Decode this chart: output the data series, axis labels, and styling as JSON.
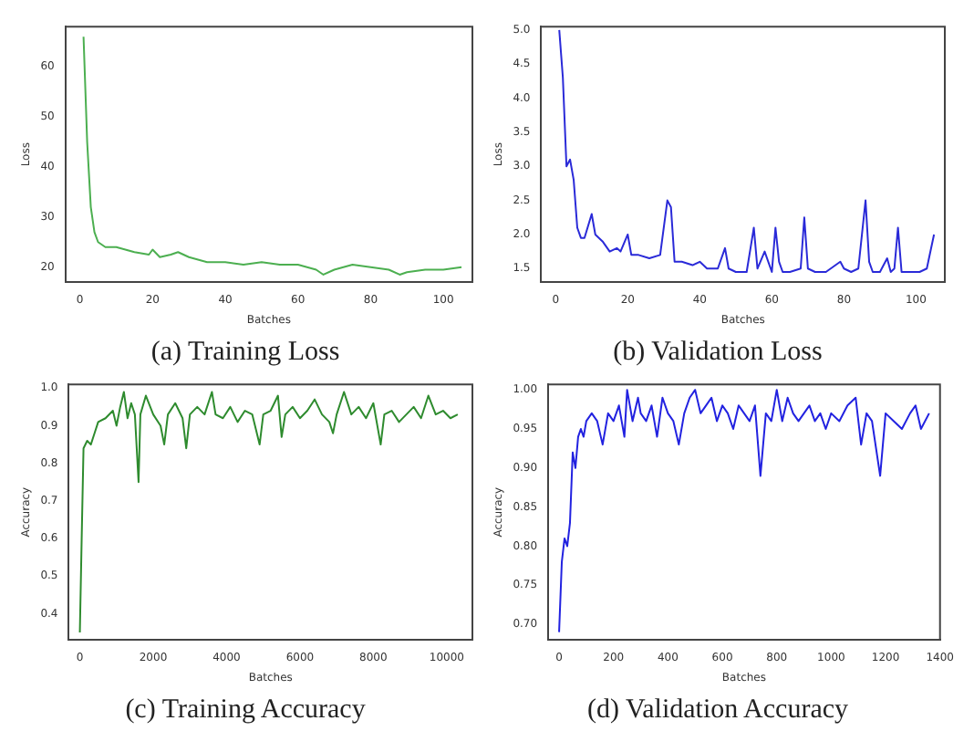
{
  "chart_data": [
    {
      "type": "line",
      "title": "(a) Training Loss",
      "xlabel": "Batches",
      "ylabel": "Loss",
      "xlim": [
        -4,
        108
      ],
      "ylim": [
        17,
        68
      ],
      "xticks": [
        0,
        20,
        40,
        60,
        80,
        100
      ],
      "yticks": [
        20,
        30,
        40,
        50,
        60
      ],
      "x": [
        1,
        2,
        3,
        4,
        5,
        7,
        10,
        15,
        19,
        20,
        22,
        25,
        27,
        30,
        35,
        40,
        45,
        50,
        55,
        60,
        65,
        67,
        70,
        75,
        80,
        85,
        88,
        90,
        95,
        100,
        105
      ],
      "series": [
        {
          "color": "#4caf50",
          "values": [
            66,
            45,
            32,
            27,
            25,
            24,
            24,
            23,
            22.5,
            23.5,
            22,
            22.5,
            23,
            22,
            21,
            21,
            20.5,
            21,
            20.5,
            20.5,
            19.5,
            18.5,
            19.5,
            20.5,
            20,
            19.5,
            18.5,
            19,
            19.5,
            19.5,
            20
          ]
        }
      ]
    },
    {
      "type": "line",
      "title": "(b) Validation Loss",
      "xlabel": "Batches",
      "ylabel": "Loss",
      "xlim": [
        -4,
        108
      ],
      "ylim": [
        1.3,
        5.05
      ],
      "xticks": [
        0,
        20,
        40,
        60,
        80,
        100
      ],
      "yticks": [
        1.5,
        {
          "value": 2,
          "label": "2.0"
        },
        2.5,
        {
          "value": 3,
          "label": "3.0"
        },
        3.5,
        {
          "value": 4,
          "label": "4.0"
        },
        4.5,
        {
          "value": 5,
          "label": "5.0"
        }
      ],
      "x": [
        1,
        2,
        3,
        4,
        5,
        6,
        7,
        8,
        10,
        11,
        13,
        15,
        17,
        18,
        20,
        21,
        23,
        26,
        29,
        31,
        32,
        33,
        35,
        38,
        40,
        42,
        45,
        47,
        48,
        50,
        53,
        55,
        56,
        58,
        60,
        61,
        62,
        63,
        65,
        68,
        69,
        70,
        72,
        75,
        79,
        80,
        82,
        84,
        86,
        87,
        88,
        90,
        92,
        93,
        94,
        95,
        96,
        98,
        101,
        103,
        105
      ],
      "series": [
        {
          "color": "#2a2ad8",
          "values": [
            5.0,
            4.3,
            3.0,
            3.1,
            2.8,
            2.1,
            1.95,
            1.95,
            2.3,
            2.0,
            1.9,
            1.75,
            1.8,
            1.75,
            2.0,
            1.7,
            1.7,
            1.65,
            1.7,
            2.5,
            2.4,
            1.6,
            1.6,
            1.55,
            1.6,
            1.5,
            1.5,
            1.8,
            1.5,
            1.45,
            1.45,
            2.1,
            1.5,
            1.75,
            1.45,
            2.1,
            1.6,
            1.45,
            1.45,
            1.5,
            2.25,
            1.5,
            1.45,
            1.45,
            1.6,
            1.5,
            1.45,
            1.5,
            2.5,
            1.6,
            1.45,
            1.45,
            1.65,
            1.45,
            1.5,
            2.1,
            1.45,
            1.45,
            1.45,
            1.5,
            2.0
          ]
        }
      ]
    },
    {
      "type": "line",
      "title": "(c) Training Accuracy",
      "xlabel": "Batches",
      "ylabel": "Accuracy",
      "xlim": [
        -300,
        10700
      ],
      "ylim": [
        0.33,
        1.01
      ],
      "xticks": [
        0,
        2000,
        4000,
        6000,
        8000,
        10000
      ],
      "yticks": [
        0.4,
        0.5,
        0.6,
        0.7,
        0.8,
        0.9,
        {
          "value": 1,
          "label": "1.0"
        }
      ],
      "x": [
        0,
        50,
        100,
        200,
        300,
        400,
        500,
        700,
        900,
        1000,
        1100,
        1200,
        1300,
        1400,
        1500,
        1600,
        1650,
        1800,
        2000,
        2200,
        2300,
        2400,
        2600,
        2800,
        2900,
        3000,
        3200,
        3400,
        3600,
        3700,
        3900,
        4100,
        4300,
        4500,
        4700,
        4900,
        5000,
        5200,
        5400,
        5500,
        5600,
        5800,
        6000,
        6200,
        6400,
        6600,
        6800,
        6900,
        7000,
        7200,
        7400,
        7600,
        7800,
        8000,
        8200,
        8300,
        8500,
        8700,
        8900,
        9100,
        9300,
        9500,
        9700,
        9900,
        10100,
        10300
      ],
      "series": [
        {
          "color": "#2e8b2e",
          "values": [
            0.35,
            0.6,
            0.84,
            0.86,
            0.85,
            0.88,
            0.91,
            0.92,
            0.94,
            0.9,
            0.95,
            0.99,
            0.92,
            0.96,
            0.93,
            0.75,
            0.93,
            0.98,
            0.93,
            0.9,
            0.85,
            0.93,
            0.96,
            0.92,
            0.84,
            0.93,
            0.95,
            0.93,
            0.99,
            0.93,
            0.92,
            0.95,
            0.91,
            0.94,
            0.93,
            0.85,
            0.93,
            0.94,
            0.98,
            0.87,
            0.93,
            0.95,
            0.92,
            0.94,
            0.97,
            0.93,
            0.91,
            0.88,
            0.93,
            0.99,
            0.93,
            0.95,
            0.92,
            0.96,
            0.85,
            0.93,
            0.94,
            0.91,
            0.93,
            0.95,
            0.92,
            0.98,
            0.93,
            0.94,
            0.92,
            0.93
          ]
        }
      ]
    },
    {
      "type": "line",
      "title": "(d) Validation Accuracy",
      "xlabel": "Batches",
      "ylabel": "Accuracy",
      "xlim": [
        -40,
        1400
      ],
      "ylim": [
        0.68,
        1.007
      ],
      "xticks": [
        0,
        200,
        400,
        600,
        800,
        1000,
        1200,
        1400
      ],
      "yticks": [
        {
          "value": 0.7,
          "label": "0.70"
        },
        0.75,
        {
          "value": 0.8,
          "label": "0.80"
        },
        0.85,
        {
          "value": 0.9,
          "label": "0.90"
        },
        0.95,
        {
          "value": 1,
          "label": "1.00"
        }
      ],
      "x": [
        0,
        10,
        20,
        30,
        40,
        50,
        60,
        70,
        80,
        90,
        100,
        120,
        140,
        160,
        180,
        200,
        220,
        240,
        250,
        270,
        290,
        300,
        320,
        340,
        360,
        380,
        400,
        420,
        440,
        460,
        480,
        500,
        520,
        540,
        560,
        580,
        600,
        620,
        640,
        660,
        680,
        700,
        720,
        740,
        760,
        780,
        800,
        820,
        840,
        860,
        880,
        900,
        920,
        940,
        960,
        980,
        1000,
        1030,
        1060,
        1090,
        1110,
        1130,
        1150,
        1180,
        1200,
        1230,
        1260,
        1290,
        1310,
        1330,
        1360
      ],
      "series": [
        {
          "color": "#2222e0",
          "values": [
            0.69,
            0.78,
            0.81,
            0.8,
            0.83,
            0.92,
            0.9,
            0.94,
            0.95,
            0.94,
            0.96,
            0.97,
            0.96,
            0.93,
            0.97,
            0.96,
            0.98,
            0.94,
            1.0,
            0.96,
            0.99,
            0.97,
            0.96,
            0.98,
            0.94,
            0.99,
            0.97,
            0.96,
            0.93,
            0.97,
            0.99,
            1.0,
            0.97,
            0.98,
            0.99,
            0.96,
            0.98,
            0.97,
            0.95,
            0.98,
            0.97,
            0.96,
            0.98,
            0.89,
            0.97,
            0.96,
            1.0,
            0.96,
            0.99,
            0.97,
            0.96,
            0.97,
            0.98,
            0.96,
            0.97,
            0.95,
            0.97,
            0.96,
            0.98,
            0.99,
            0.93,
            0.97,
            0.96,
            0.89,
            0.97,
            0.96,
            0.95,
            0.97,
            0.98,
            0.95,
            0.97
          ]
        }
      ]
    }
  ]
}
